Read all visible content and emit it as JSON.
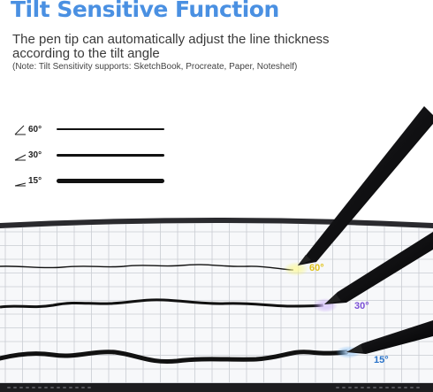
{
  "header": {
    "title": "Tilt Sensitive Function",
    "description_line1": "The pen tip can automatically adjust the line thickness",
    "description_line2": "according to the tilt angle",
    "note": "(Note: Tilt Sensitivity supports: SketchBook, Procreate, Paper, Noteshelf)"
  },
  "legend": [
    {
      "label": "60°",
      "thickness": "thin"
    },
    {
      "label": "30°",
      "thickness": "medium"
    },
    {
      "label": "15°",
      "thickness": "thick"
    }
  ],
  "strokes": [
    {
      "angle_label": "60°",
      "glow_color": "#f3f36a",
      "label_color": "#e0c21a"
    },
    {
      "angle_label": "30°",
      "glow_color": "#b38cf2",
      "label_color": "#7a4fd6"
    },
    {
      "angle_label": "15°",
      "glow_color": "#5aa8f0",
      "label_color": "#2a73c9"
    }
  ],
  "colors": {
    "title": "#4a90e2",
    "ink": "#111111",
    "grid": "#c9ccd2",
    "tablet_frame": "#2a2a2e"
  }
}
